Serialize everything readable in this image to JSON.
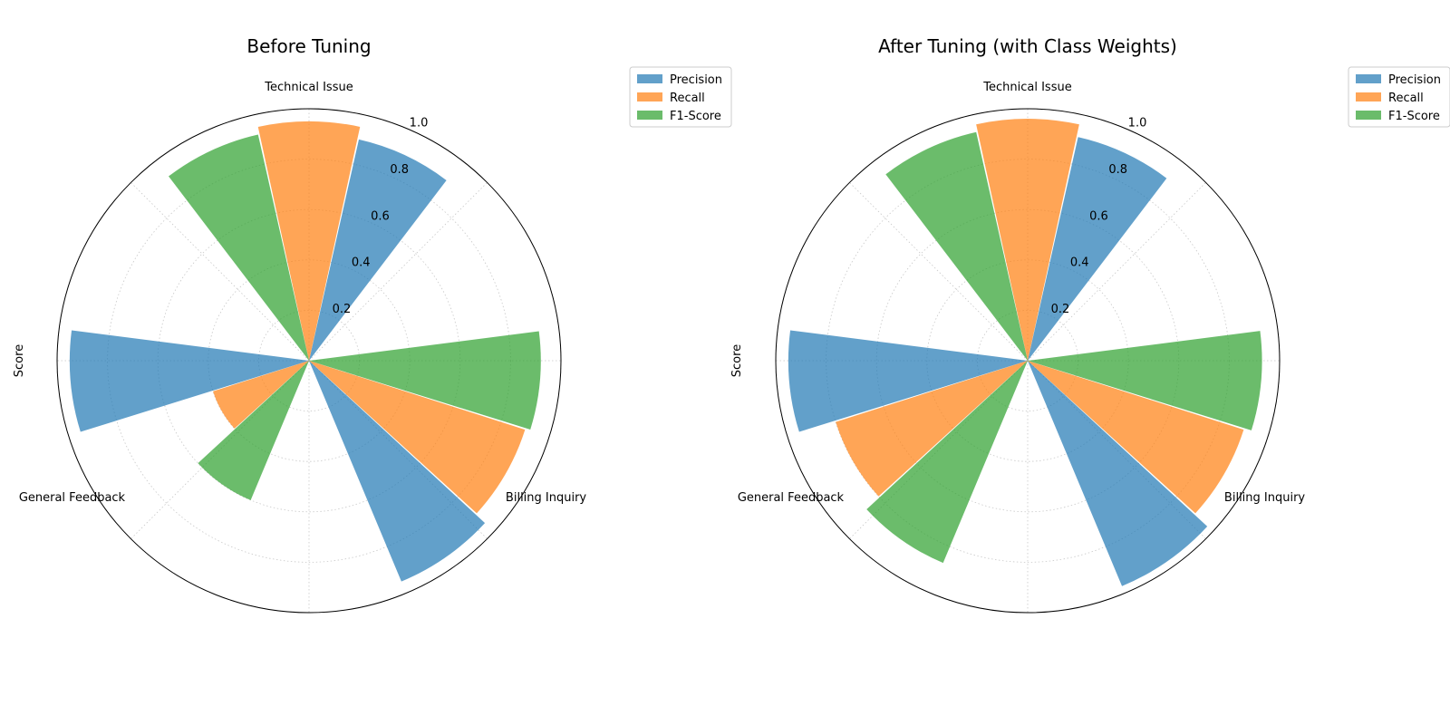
{
  "chart_data": [
    {
      "type": "polar-bar",
      "title": "Before Tuning",
      "ylabel": "Score",
      "categories": [
        "Technical Issue",
        "Billing Inquiry",
        "General Feedback"
      ],
      "rlim": [
        0,
        1.0
      ],
      "rticks": [
        "0.2",
        "0.4",
        "0.6",
        "0.8",
        "1.0"
      ],
      "grid": true,
      "legend_position": "upper-right-outside",
      "series": [
        {
          "name": "Precision",
          "color": "#1f77b4",
          "values": [
            0.9,
            0.95,
            0.95
          ]
        },
        {
          "name": "Recall",
          "color": "#ff7f0e",
          "values": [
            0.95,
            0.9,
            0.4
          ]
        },
        {
          "name": "F1-Score",
          "color": "#2ca02c",
          "values": [
            0.92,
            0.92,
            0.6
          ]
        }
      ]
    },
    {
      "type": "polar-bar",
      "title": "After Tuning (with Class Weights)",
      "ylabel": "Score",
      "categories": [
        "Technical Issue",
        "Billing Inquiry",
        "General Feedback"
      ],
      "rlim": [
        0,
        1.0
      ],
      "rticks": [
        "0.2",
        "0.4",
        "0.6",
        "0.8",
        "1.0"
      ],
      "grid": true,
      "legend_position": "upper-right-outside",
      "series": [
        {
          "name": "Precision",
          "color": "#1f77b4",
          "values": [
            0.91,
            0.97,
            0.95
          ]
        },
        {
          "name": "Recall",
          "color": "#ff7f0e",
          "values": [
            0.96,
            0.9,
            0.8
          ]
        },
        {
          "name": "F1-Score",
          "color": "#2ca02c",
          "values": [
            0.93,
            0.93,
            0.87
          ]
        }
      ]
    }
  ]
}
